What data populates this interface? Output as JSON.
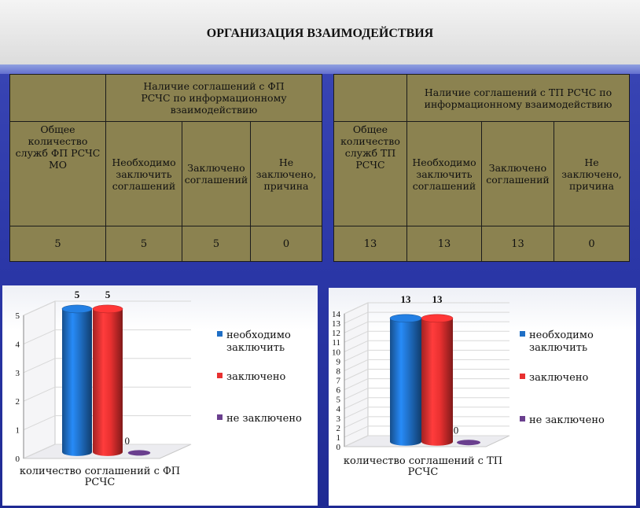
{
  "title": "ОРГАНИЗАЦИЯ ВЗАИМОДЕЙСТВИЯ",
  "table_left": {
    "header_group": "Наличие соглашений с ФП РСЧС по информационному взаимодействию",
    "col_total": "Общее количество служб ФП РСЧС МО",
    "col_need": "Необходимо заключить соглашений",
    "col_done": "Заключено соглашений",
    "col_not": "Не заключено, причина",
    "values": [
      "5",
      "5",
      "5",
      "0"
    ]
  },
  "table_right": {
    "header_group": "Наличие соглашений с ТП РСЧС по информационному взаимодействию",
    "col_total": "Общее количество служб ТП РСЧС",
    "col_need": "Необходимо заключить соглашений",
    "col_done": "Заключено соглашений",
    "col_not": "Не заключено, причина",
    "values": [
      "13",
      "13",
      "13",
      "0"
    ]
  },
  "chart_data": [
    {
      "type": "bar",
      "categories": [
        "количество соглашений с ФП РСЧС"
      ],
      "series": [
        {
          "name": "необходимо заключить",
          "values": [
            5
          ],
          "color": "#1f6fc6"
        },
        {
          "name": "заключено",
          "values": [
            5
          ],
          "color": "#e83030"
        },
        {
          "name": "не заключено",
          "values": [
            0
          ],
          "color": "#6a3f8e"
        }
      ],
      "ylim": [
        0,
        5
      ],
      "yticks": [
        0,
        1,
        2,
        3,
        4,
        5
      ],
      "legend": "right"
    },
    {
      "type": "bar",
      "categories": [
        "количество соглашений с ТП РСЧС"
      ],
      "series": [
        {
          "name": "необходимо заключить",
          "values": [
            13
          ],
          "color": "#1f6fc6"
        },
        {
          "name": "заключено",
          "values": [
            13
          ],
          "color": "#e83030"
        },
        {
          "name": "не заключено",
          "values": [
            0
          ],
          "color": "#6a3f8e"
        }
      ],
      "ylim": [
        0,
        14
      ],
      "yticks": [
        0,
        1,
        2,
        3,
        4,
        5,
        6,
        7,
        8,
        9,
        10,
        11,
        12,
        13,
        14
      ],
      "legend": "right"
    }
  ]
}
